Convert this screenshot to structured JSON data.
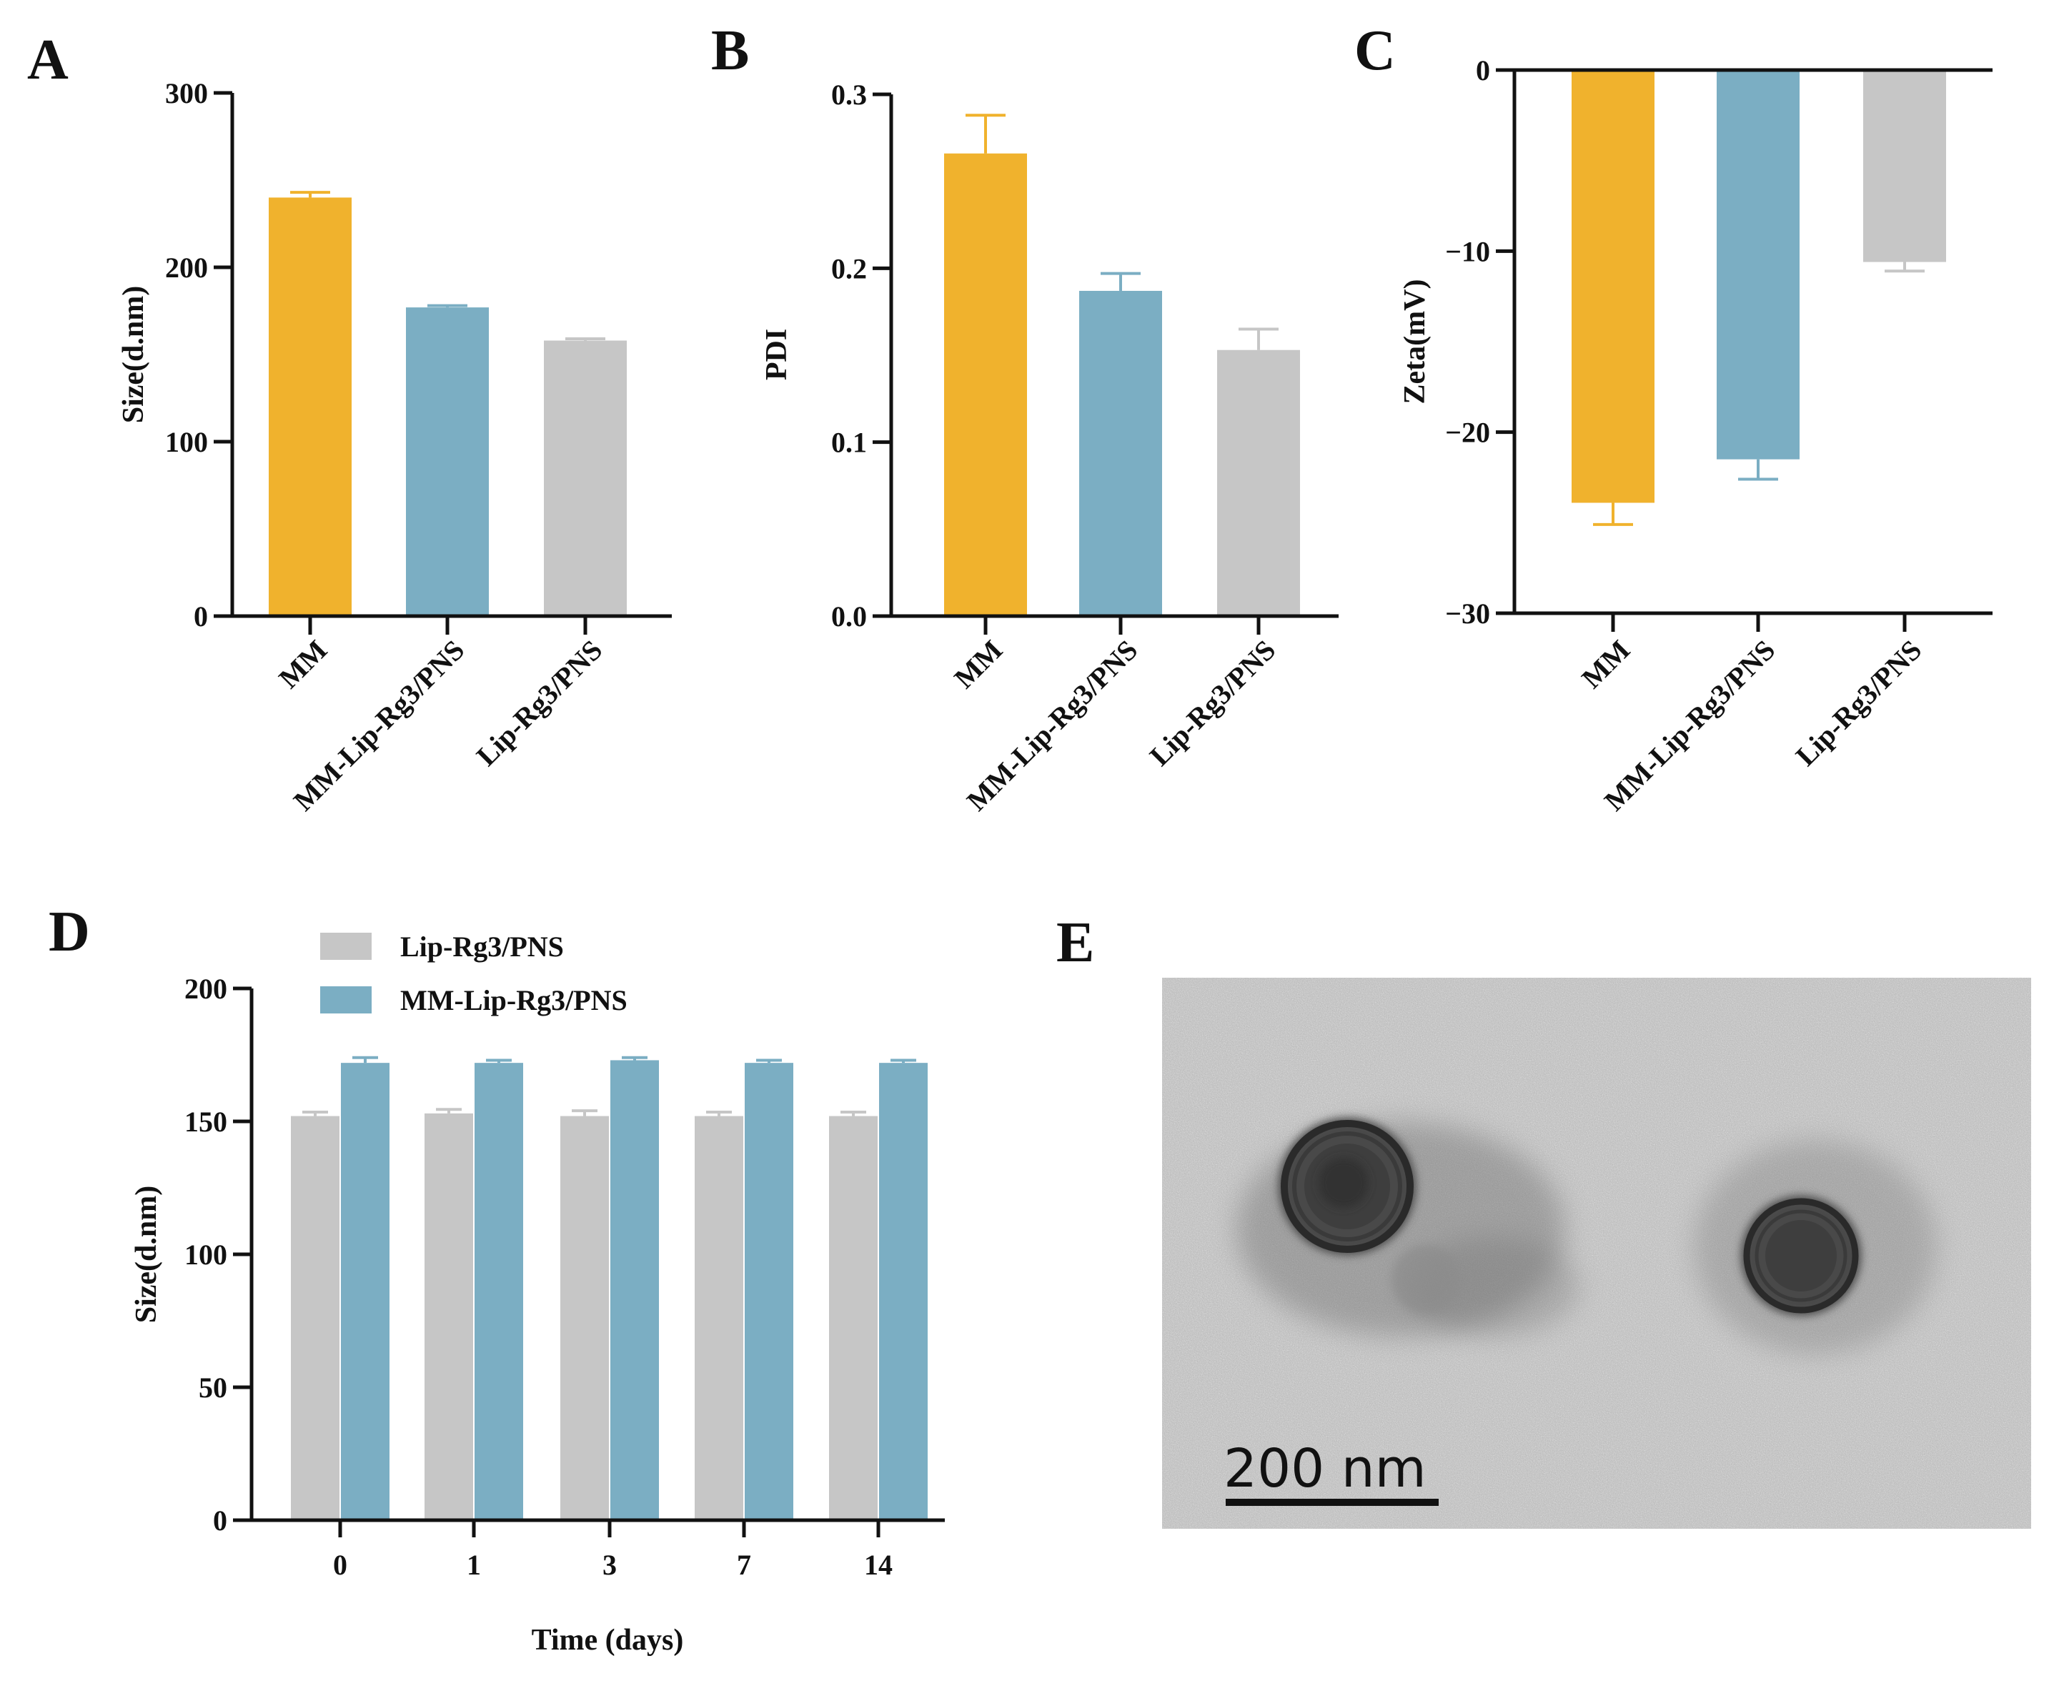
{
  "colors": {
    "MM": "#F0B22D",
    "MM-Lip-Rg3/PNS": "#7BAEC3",
    "Lip-Rg3/PNS": "#C6C6C6",
    "axis": "#111111"
  },
  "panels": {
    "A": {
      "letter": "A"
    },
    "B": {
      "letter": "B"
    },
    "C": {
      "letter": "C"
    },
    "D": {
      "letter": "D"
    },
    "E": {
      "letter": "E",
      "scale_bar_label": "200 nm"
    }
  },
  "chart_data": [
    {
      "panel": "A",
      "type": "bar",
      "categories": [
        "MM",
        "MM-Lip-Rg3/PNS",
        "Lip-Rg3/PNS"
      ],
      "values": [
        240,
        177,
        158
      ],
      "errors": [
        3,
        1,
        1
      ],
      "ylabel": "Size(d.nm)",
      "ylim": [
        0,
        300
      ],
      "yticks": [
        0,
        100,
        200,
        300
      ],
      "ytick_labels": [
        "0",
        "100",
        "200",
        "300"
      ]
    },
    {
      "panel": "B",
      "type": "bar",
      "categories": [
        "MM",
        "MM-Lip-Rg3/PNS",
        "Lip-Rg3/PNS"
      ],
      "values": [
        0.266,
        0.187,
        0.153
      ],
      "errors": [
        0.022,
        0.01,
        0.012
      ],
      "ylabel": "PDI",
      "ylim": [
        0,
        0.3
      ],
      "yticks": [
        0,
        0.1,
        0.2,
        0.3
      ],
      "ytick_labels": [
        "0.0",
        "0.1",
        "0.2",
        "0.3"
      ]
    },
    {
      "panel": "C",
      "type": "bar",
      "categories": [
        "MM",
        "MM-Lip-Rg3/PNS",
        "Lip-Rg3/PNS"
      ],
      "values": [
        -23.9,
        -21.5,
        -10.6
      ],
      "errors": [
        1.2,
        1.1,
        0.5
      ],
      "ylabel": "Zeta(mV)",
      "ylim": [
        -30,
        0
      ],
      "yticks": [
        -30,
        -20,
        -10,
        0
      ],
      "ytick_labels": [
        "−30",
        "−20",
        "−10",
        "0"
      ]
    },
    {
      "panel": "D",
      "type": "bar",
      "categories": [
        "0",
        "1",
        "3",
        "7",
        "14"
      ],
      "series": [
        {
          "name": "Lip-Rg3/PNS",
          "values": [
            152,
            153,
            152,
            152,
            152
          ],
          "errors": [
            1.5,
            1.5,
            2,
            1.5,
            1.5
          ]
        },
        {
          "name": "MM-Lip-Rg3/PNS",
          "values": [
            172,
            172,
            173,
            172,
            172
          ],
          "errors": [
            2,
            1,
            1,
            1,
            1
          ]
        }
      ],
      "xlabel": "Time (days)",
      "ylabel": "Size(d.nm)",
      "ylim": [
        0,
        200
      ],
      "yticks": [
        0,
        50,
        100,
        150,
        200
      ],
      "ytick_labels": [
        "0",
        "50",
        "100",
        "150",
        "200"
      ],
      "legend": "top-left"
    }
  ]
}
